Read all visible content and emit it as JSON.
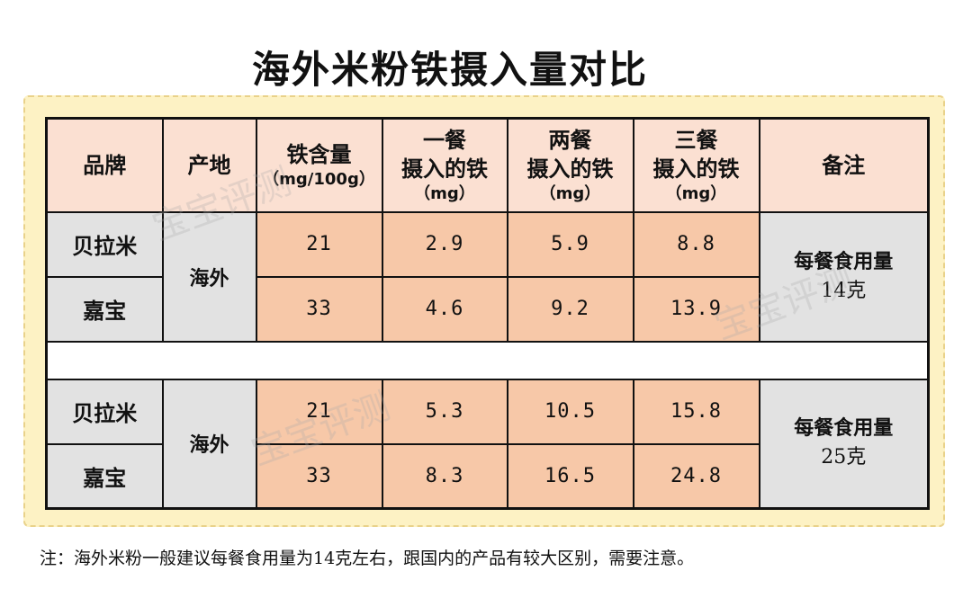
{
  "title": "海外米粉铁摄入量对比",
  "headers": {
    "brand": "品牌",
    "origin": "产地",
    "iron": "铁含量",
    "iron_unit": "（mg/100g）",
    "one_meal": "一餐",
    "two_meal": "两餐",
    "three_meal": "三餐",
    "intake": "摄入的铁",
    "intake_unit": "（mg）",
    "note": "备注"
  },
  "group1": {
    "origin": "海外",
    "note_line1": "每餐食用量",
    "note_line2": "14克",
    "rows": [
      {
        "brand": "贝拉米",
        "iron": "21",
        "one": "2.9",
        "two": "5.9",
        "three": "8.8"
      },
      {
        "brand": "嘉宝",
        "iron": "33",
        "one": "4.6",
        "two": "9.2",
        "three": "13.9"
      }
    ]
  },
  "group2": {
    "origin": "海外",
    "note_line1": "每餐食用量",
    "note_line2": "25克",
    "rows": [
      {
        "brand": "贝拉米",
        "iron": "21",
        "one": "5.3",
        "two": "10.5",
        "three": "15.8"
      },
      {
        "brand": "嘉宝",
        "iron": "33",
        "one": "8.3",
        "two": "16.5",
        "three": "24.8"
      }
    ]
  },
  "watermark": "宝宝评测",
  "footnote": "注：海外米粉一般建议每餐食用量为14克左右，跟国内的产品有较大区别，需要注意。",
  "colors": {
    "header_bg": "#fbe0d2",
    "value_bg": "#f7c8a8",
    "label_bg": "#e2e2e2",
    "frame_bg": "#fdf2c4"
  }
}
